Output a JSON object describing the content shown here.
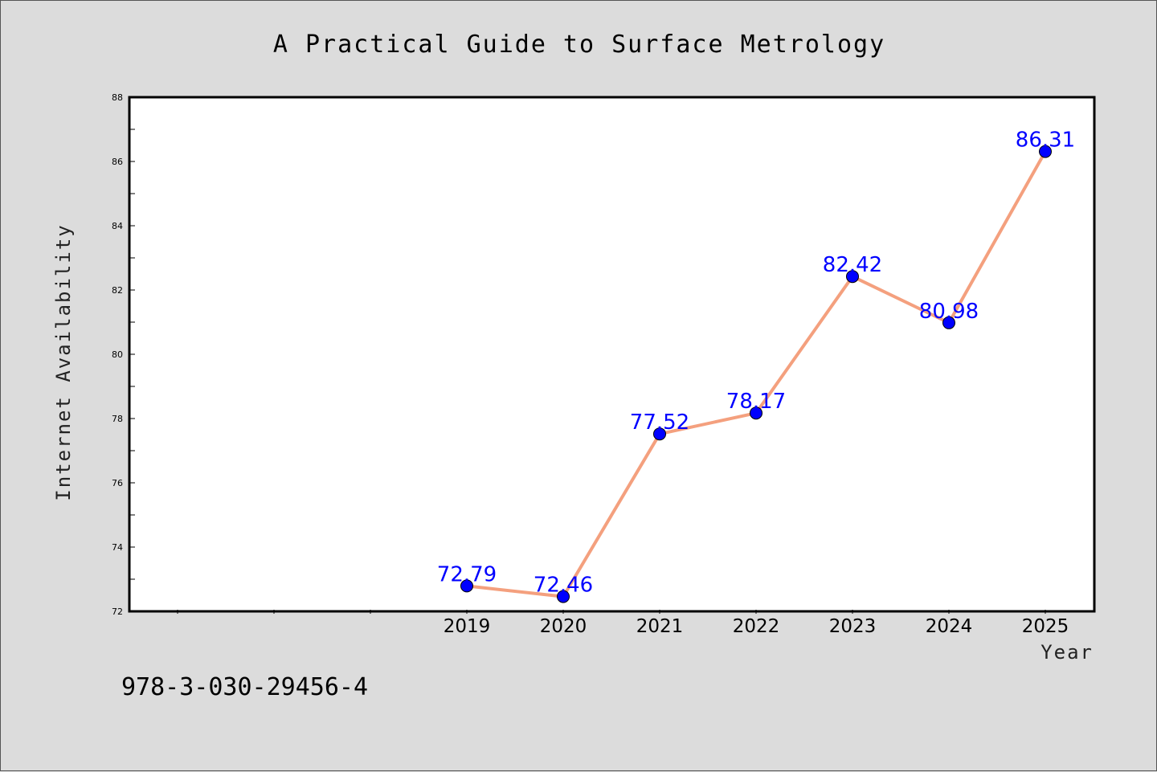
{
  "chart_data": {
    "type": "line",
    "title": "A Practical Guide to Surface Metrology",
    "xlabel": "Year",
    "ylabel": "Internet Availability",
    "x": [
      "2019",
      "2020",
      "2021",
      "2022",
      "2023",
      "2024",
      "2025"
    ],
    "values": [
      72.79,
      72.46,
      77.52,
      78.17,
      82.42,
      80.98,
      86.31
    ],
    "value_labels": [
      "72.79",
      "72.46",
      "77.52",
      "78.17",
      "82.42",
      "80.98",
      "86.31"
    ],
    "ylim": [
      72,
      88
    ],
    "yticks": [
      72,
      74,
      76,
      78,
      80,
      82,
      84,
      86,
      88
    ],
    "grid": false,
    "legend": "none",
    "line_color": "#f4a07e",
    "marker_color": "#0000ff",
    "label_color": "#0000ff"
  },
  "footer": {
    "isbn": "978-3-030-29456-4"
  }
}
